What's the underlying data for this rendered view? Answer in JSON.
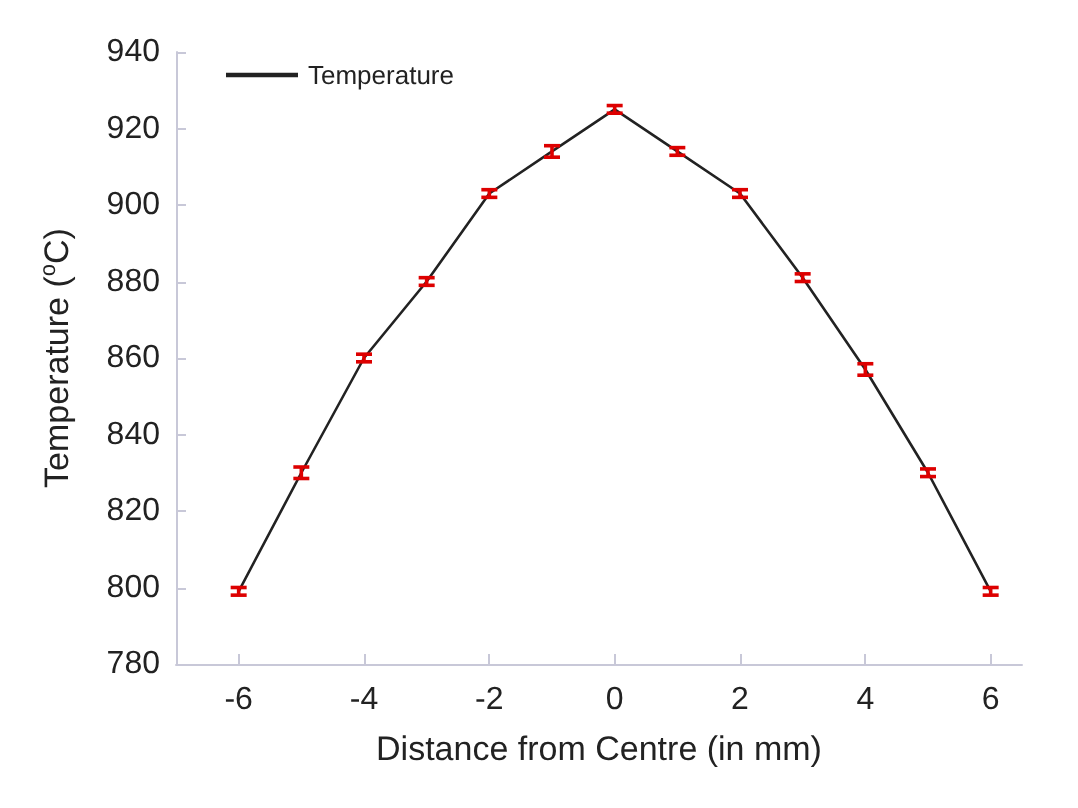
{
  "chart_data": {
    "type": "line",
    "xlabel": "Distance from Centre (in mm)",
    "ylabel": "Temperature ($^{o}$C)",
    "x": [
      -6,
      -5,
      -4,
      -3,
      -2,
      -1,
      0,
      1,
      2,
      3,
      4,
      5,
      6
    ],
    "series": [
      {
        "name": "Temperature",
        "color": "#222222",
        "values": [
          799,
          830,
          860,
          880,
          903,
          914,
          925,
          914,
          903,
          881,
          857,
          830,
          799
        ],
        "errors": [
          1,
          1.5,
          1,
          1,
          1,
          1.5,
          1,
          1,
          1,
          1,
          1.5,
          1,
          1
        ]
      }
    ],
    "xlim": [
      -7,
      6.5
    ],
    "xticks": [
      -6,
      -4,
      -2,
      0,
      2,
      4,
      6
    ],
    "ylim": [
      780,
      940
    ],
    "yticks": [
      780,
      800,
      820,
      840,
      860,
      880,
      900,
      920,
      940
    ],
    "grid": false,
    "legend": "top left",
    "marker": "none",
    "line_style": "solid"
  }
}
